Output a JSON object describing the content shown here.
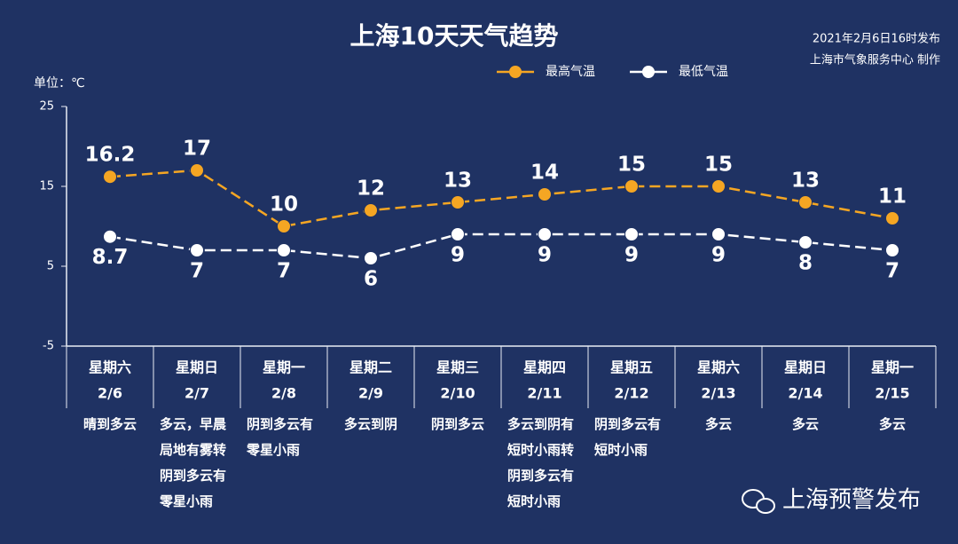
{
  "chart_data": {
    "type": "line",
    "title": "上海10天天气趋势",
    "source": [
      "2021年2月6日16时发布",
      "上海市气象服务中心 制作"
    ],
    "y_label": "单位：℃",
    "categories": [
      "2/6",
      "2/7",
      "2/8",
      "2/9",
      "2/10",
      "2/11",
      "2/12",
      "2/13",
      "2/14",
      "2/15"
    ],
    "weekdays": [
      "星期六",
      "星期日",
      "星期一",
      "星期二",
      "星期三",
      "星期四",
      "星期五",
      "星期六",
      "星期日",
      "星期一"
    ],
    "weather": [
      "晴到多云",
      "多云，早晨局地有雾转阴到多云有零星小雨",
      "阴到多云有零星小雨",
      "多云到阴",
      "阴到多云",
      "多云到阴有短时小雨转阴到多云有短时小雨",
      "阴到多云有短时小雨",
      "多云",
      "多云",
      "多云"
    ],
    "series": [
      {
        "name": "最高气温",
        "color": "#f5a623",
        "values": [
          16.2,
          17,
          10,
          12,
          13,
          14,
          15,
          15,
          13,
          11
        ]
      },
      {
        "name": "最低气温",
        "color": "#ffffff",
        "values": [
          8.7,
          7,
          7,
          6,
          9,
          9,
          9,
          9,
          8,
          7
        ]
      }
    ],
    "ylim": [
      -5,
      25
    ],
    "yticks": [
      -5,
      5,
      15,
      25
    ],
    "grid": false,
    "legend": "top"
  },
  "watermark": "上海预警发布"
}
